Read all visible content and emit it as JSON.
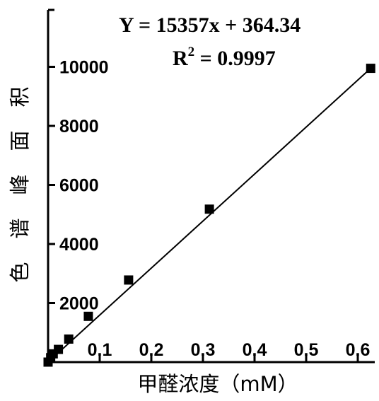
{
  "chart_data": {
    "type": "scatter",
    "title": "",
    "xlabel": "甲醛浓度（mM）",
    "ylabel": "色谱峰面积",
    "xlim": [
      0,
      0.63
    ],
    "ylim": [
      0,
      11000
    ],
    "x_ticks": [
      "0.1",
      "0.2",
      "0.3",
      "0.4",
      "0.5",
      "0.6"
    ],
    "y_ticks": [
      "2000",
      "4000",
      "6000",
      "8000",
      "10000"
    ],
    "series": [
      {
        "points": [
          {
            "x": 0.0,
            "y": 0
          },
          {
            "x": 0.005,
            "y": 150
          },
          {
            "x": 0.01,
            "y": 280
          },
          {
            "x": 0.02,
            "y": 430
          },
          {
            "x": 0.04,
            "y": 780
          },
          {
            "x": 0.078,
            "y": 1550
          },
          {
            "x": 0.156,
            "y": 2780
          },
          {
            "x": 0.3125,
            "y": 5180
          },
          {
            "x": 0.625,
            "y": 9950
          }
        ]
      }
    ],
    "fit": {
      "equation": "Y = 15357x + 364.34",
      "r2_prefix": "R",
      "r2_sup": "2",
      "r2_value": " = 0.9997",
      "slope": 15357,
      "intercept": 364.34
    },
    "grid": false,
    "legend": "none"
  }
}
